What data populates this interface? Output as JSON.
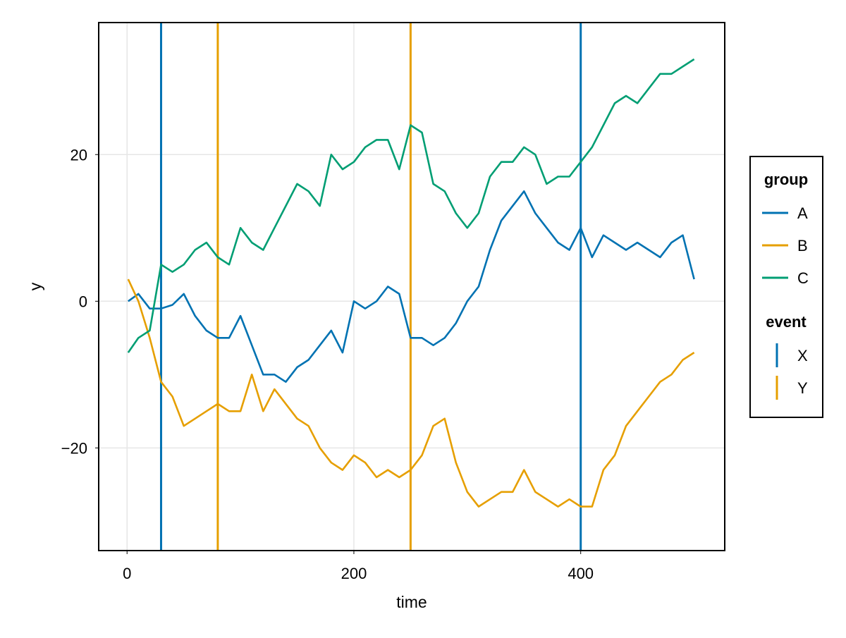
{
  "chart_data": {
    "type": "line",
    "xlabel": "time",
    "ylabel": "y",
    "xlim": [
      -25,
      527
    ],
    "ylim": [
      -34,
      38
    ],
    "xticks": [
      0,
      200,
      400
    ],
    "yticks": [
      -20,
      0,
      20
    ],
    "grid": true,
    "legend_position": "right",
    "colors": {
      "A": "#0072B2",
      "B": "#E69F00",
      "C": "#009E73",
      "grid": "#e6e6e6",
      "frame": "#000000"
    },
    "series": [
      {
        "name": "A",
        "color": "#0072B2",
        "x": [
          1,
          10,
          20,
          30,
          40,
          50,
          60,
          70,
          80,
          90,
          100,
          110,
          120,
          130,
          140,
          150,
          160,
          170,
          180,
          190,
          200,
          210,
          220,
          230,
          240,
          250,
          260,
          270,
          280,
          290,
          300,
          310,
          320,
          330,
          340,
          350,
          360,
          370,
          380,
          390,
          400,
          410,
          420,
          430,
          440,
          450,
          460,
          470,
          480,
          490,
          500
        ],
        "y": [
          0,
          1,
          -1,
          -1,
          -0.5,
          1,
          -2,
          -4,
          -5,
          -5,
          -2,
          -6,
          -10,
          -10,
          -11,
          -9,
          -8,
          -6,
          -4,
          -7,
          0,
          -1,
          0,
          2,
          1,
          -5,
          -5,
          -6,
          -5,
          -3,
          0,
          2,
          7,
          11,
          13,
          15,
          12,
          10,
          8,
          7,
          10,
          6,
          9,
          8,
          7,
          8,
          7,
          6,
          8,
          9,
          3
        ]
      },
      {
        "name": "B",
        "color": "#E69F00",
        "x": [
          1,
          10,
          20,
          30,
          40,
          50,
          60,
          70,
          80,
          90,
          100,
          110,
          120,
          130,
          140,
          150,
          160,
          170,
          180,
          190,
          200,
          210,
          220,
          230,
          240,
          250,
          260,
          270,
          280,
          290,
          300,
          310,
          320,
          330,
          340,
          350,
          360,
          370,
          380,
          390,
          400,
          410,
          420,
          430,
          440,
          450,
          460,
          470,
          480,
          490,
          500
        ],
        "y": [
          3,
          0,
          -5,
          -11,
          -13,
          -17,
          -16,
          -15,
          -14,
          -15,
          -15,
          -10,
          -15,
          -12,
          -14,
          -16,
          -17,
          -20,
          -22,
          -23,
          -21,
          -22,
          -24,
          -23,
          -24,
          -23,
          -21,
          -17,
          -16,
          -22,
          -26,
          -28,
          -27,
          -26,
          -26,
          -23,
          -26,
          -27,
          -28,
          -27,
          -28,
          -28,
          -23,
          -21,
          -17,
          -15,
          -13,
          -11,
          -10,
          -8,
          -7
        ]
      },
      {
        "name": "C",
        "color": "#009E73",
        "x": [
          1,
          10,
          20,
          30,
          40,
          50,
          60,
          70,
          80,
          90,
          100,
          110,
          120,
          130,
          140,
          150,
          160,
          170,
          180,
          190,
          200,
          210,
          220,
          230,
          240,
          250,
          260,
          270,
          280,
          290,
          300,
          310,
          320,
          330,
          340,
          350,
          360,
          370,
          380,
          390,
          400,
          410,
          420,
          430,
          440,
          450,
          460,
          470,
          480,
          490,
          500
        ],
        "y": [
          -7,
          -5,
          -4,
          5,
          4,
          5,
          7,
          8,
          6,
          5,
          10,
          8,
          7,
          10,
          13,
          16,
          15,
          13,
          20,
          18,
          19,
          21,
          22,
          22,
          18,
          24,
          23,
          16,
          15,
          12,
          10,
          12,
          17,
          19,
          19,
          21,
          20,
          16,
          17,
          17,
          19,
          21,
          24,
          27,
          28,
          27,
          29,
          31,
          31,
          32,
          33
        ]
      }
    ],
    "vlines": [
      {
        "name": "X",
        "color": "#0072B2",
        "x": [
          30,
          400
        ]
      },
      {
        "name": "Y",
        "color": "#E69F00",
        "x": [
          80,
          250
        ]
      }
    ],
    "legend": {
      "groups": [
        {
          "title": "group",
          "items": [
            {
              "label": "A",
              "color": "#0072B2",
              "marker": "line"
            },
            {
              "label": "B",
              "color": "#E69F00",
              "marker": "line"
            },
            {
              "label": "C",
              "color": "#009E73",
              "marker": "line"
            }
          ]
        },
        {
          "title": "event",
          "items": [
            {
              "label": "X",
              "color": "#0072B2",
              "marker": "vline"
            },
            {
              "label": "Y",
              "color": "#E69F00",
              "marker": "vline"
            }
          ]
        }
      ]
    }
  }
}
